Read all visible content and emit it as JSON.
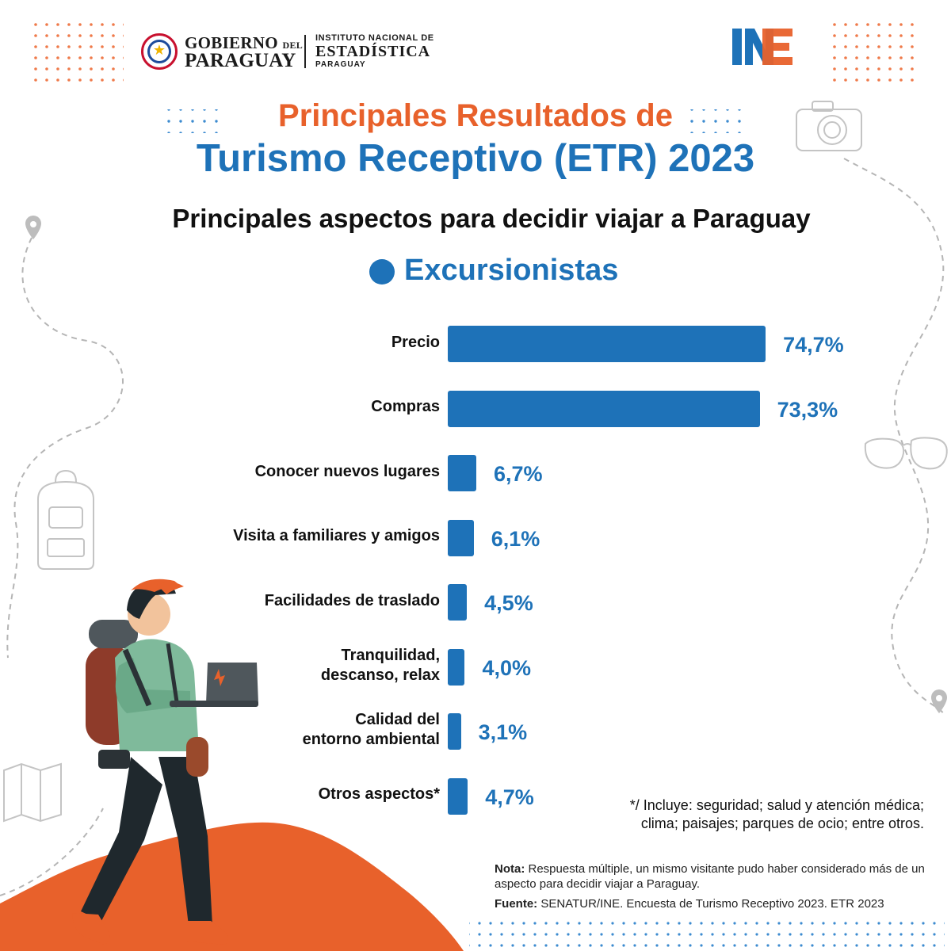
{
  "header": {
    "gov_line1": "GOBIERNO",
    "gov_line1_small": "DEL",
    "gov_line2": "PARAGUAY",
    "ine_line1": "INSTITUTO NACIONAL DE",
    "ine_line2": "ESTADÍSTICA",
    "ine_line3": "PARAGUAY",
    "ine_logo_text": "INE"
  },
  "title_line1": "Principales Resultados de",
  "title_line2": "Turismo Receptivo (ETR) 2023",
  "colors": {
    "blue": "#1e72b8",
    "orange": "#e8612b"
  },
  "chart_data": {
    "type": "bar",
    "orientation": "horizontal",
    "title": "Principales aspectos para decidir viajar a Paraguay",
    "legend": [
      "Excursionistas"
    ],
    "categories": [
      "Precio",
      "Compras",
      "Conocer nuevos lugares",
      "Visita a familiares y amigos",
      "Facilidades de traslado",
      "Tranquilidad, descanso, relax",
      "Calidad del entorno ambiental",
      "Otros aspectos*"
    ],
    "series": [
      {
        "name": "Excursionistas",
        "values": [
          74.7,
          73.3,
          6.7,
          6.1,
          4.5,
          4.0,
          3.1,
          4.7
        ]
      }
    ],
    "value_labels": [
      "74,7%",
      "73,3%",
      "6,7%",
      "6,1%",
      "4,5%",
      "4,0%",
      "3,1%",
      "4,7%"
    ],
    "unit": "%"
  },
  "footnote": "*/ Incluye: seguridad; salud y atención médica; clima; paisajes; parques de ocio; entre otros.",
  "note_label": "Nota:",
  "note_text": "Respuesta múltiple, un mismo visitante pudo haber considerado más de un aspecto para decidir viajar a Paraguay.",
  "source_label": "Fuente:",
  "source_text": "SENATUR/INE. Encuesta de Turismo Receptivo 2023. ETR 2023"
}
